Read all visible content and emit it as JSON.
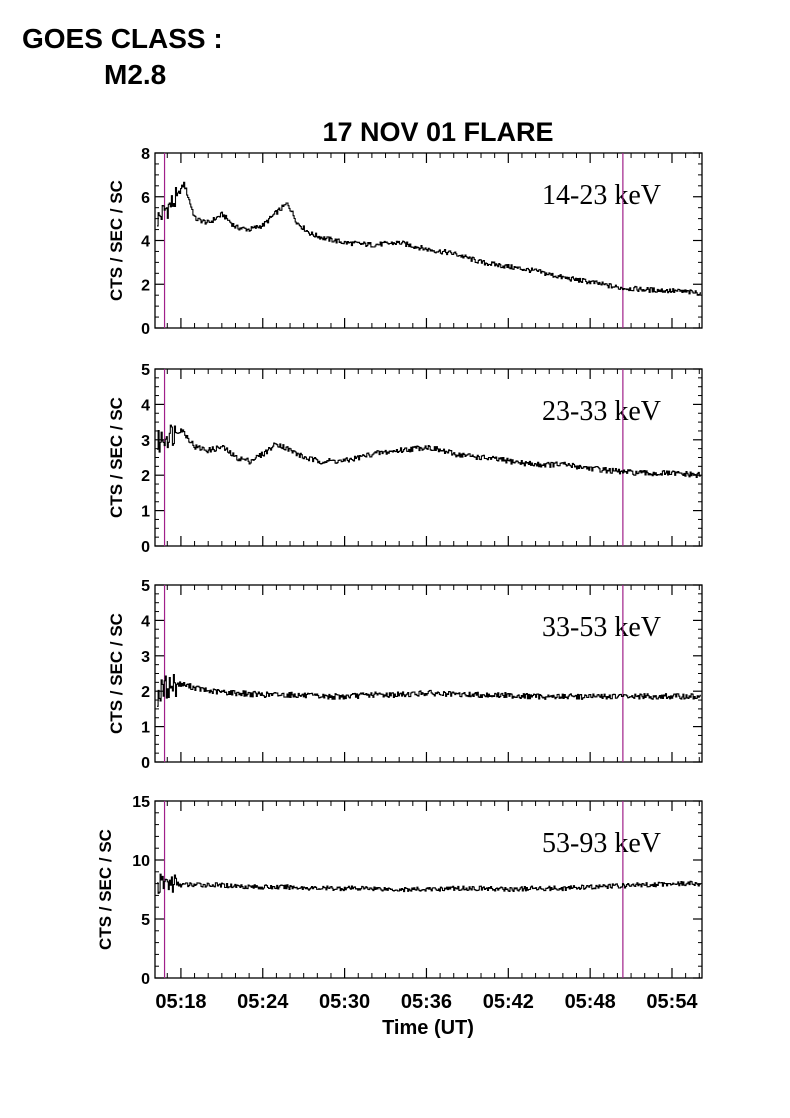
{
  "header": {
    "goes_line1": "GOES CLASS :",
    "goes_line2": "M2.8"
  },
  "chart_data": {
    "type": "line",
    "title": "17 NOV 01 FLARE",
    "xlabel": "Time (UT)",
    "ylabel": "CTS / SEC / SC",
    "x_ticks": [
      "05:18",
      "05:24",
      "05:30",
      "05:36",
      "05:42",
      "05:48",
      "05:54"
    ],
    "x_ticks_min": [
      18,
      24,
      30,
      36,
      42,
      48,
      54
    ],
    "xlim_min": [
      16.1,
      56.2
    ],
    "marker_lines_min": [
      16.8,
      50.4
    ],
    "colors": {
      "line": "#000000",
      "marker": "#a0208a"
    },
    "panels": [
      {
        "name": "14-23 keV",
        "ylim": [
          0,
          8
        ],
        "yticks": [
          "0",
          "2",
          "4",
          "6",
          "8"
        ],
        "x": [
          16.3,
          16.8,
          17.5,
          18.2,
          19,
          20,
          21,
          22,
          23,
          24,
          25,
          25.8,
          26.5,
          27.5,
          28.5,
          30,
          32,
          34,
          36,
          38,
          40,
          42,
          44,
          46,
          48,
          50,
          52,
          54,
          56
        ],
        "y": [
          5.0,
          5.4,
          5.8,
          6.6,
          5.0,
          4.8,
          5.2,
          4.6,
          4.5,
          4.7,
          5.3,
          5.7,
          4.8,
          4.3,
          4.1,
          3.9,
          3.8,
          3.9,
          3.6,
          3.4,
          3.0,
          2.8,
          2.6,
          2.3,
          2.1,
          1.85,
          1.75,
          1.7,
          1.6
        ]
      },
      {
        "name": "23-33 keV",
        "ylim": [
          0,
          5
        ],
        "yticks": [
          "0",
          "1",
          "2",
          "3",
          "4",
          "5"
        ],
        "x": [
          16.3,
          16.8,
          17.5,
          18,
          19,
          20,
          21,
          22,
          23,
          24,
          25,
          26,
          27,
          28,
          30,
          32,
          34,
          36,
          38,
          40,
          42,
          44,
          46,
          48,
          50,
          52,
          54,
          56
        ],
        "y": [
          2.9,
          3.1,
          3.2,
          3.3,
          2.8,
          2.7,
          2.8,
          2.5,
          2.4,
          2.6,
          2.9,
          2.7,
          2.5,
          2.4,
          2.4,
          2.6,
          2.7,
          2.8,
          2.6,
          2.5,
          2.4,
          2.3,
          2.3,
          2.2,
          2.1,
          2.05,
          2.05,
          2.0
        ]
      },
      {
        "name": "33-53 keV",
        "ylim": [
          0,
          5
        ],
        "yticks": [
          "0",
          "1",
          "2",
          "3",
          "4",
          "5"
        ],
        "x": [
          16.3,
          16.8,
          17.5,
          18,
          19,
          20,
          22,
          24,
          26,
          28,
          30,
          32,
          34,
          36,
          38,
          40,
          42,
          44,
          46,
          48,
          50,
          52,
          54,
          56
        ],
        "y": [
          1.9,
          2.1,
          2.2,
          2.2,
          2.1,
          2.0,
          1.95,
          1.9,
          1.9,
          1.85,
          1.85,
          1.9,
          1.9,
          1.95,
          1.9,
          1.9,
          1.88,
          1.85,
          1.85,
          1.85,
          1.85,
          1.85,
          1.85,
          1.85
        ]
      },
      {
        "name": "53-93 keV",
        "ylim": [
          0,
          15
        ],
        "yticks": [
          "0",
          "5",
          "10",
          "15"
        ],
        "x": [
          16.3,
          16.8,
          17.5,
          18,
          20,
          22,
          24,
          26,
          28,
          30,
          32,
          34,
          36,
          38,
          40,
          42,
          44,
          46,
          48,
          50,
          52,
          54,
          56
        ],
        "y": [
          7.8,
          8.1,
          8.0,
          7.9,
          7.9,
          7.8,
          7.7,
          7.7,
          7.6,
          7.6,
          7.6,
          7.5,
          7.5,
          7.6,
          7.6,
          7.5,
          7.6,
          7.6,
          7.7,
          7.8,
          7.9,
          8.0,
          8.0
        ]
      }
    ]
  }
}
